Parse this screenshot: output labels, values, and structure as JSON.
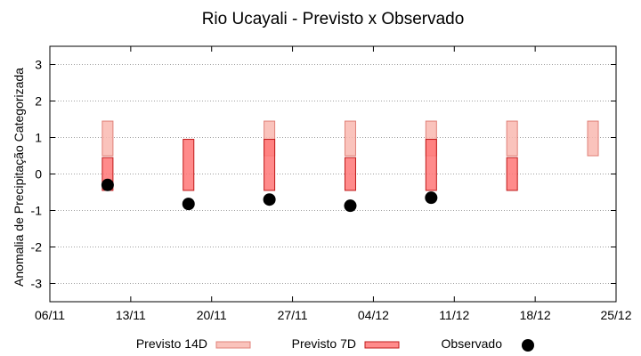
{
  "chart_data": {
    "type": "bar",
    "title": "Rio Ucayali - Previsto x Observado",
    "xlabel": "",
    "ylabel": "Anomalia de Precipitação Categorizada",
    "ylim": [
      -3.5,
      3.5
    ],
    "yticks": [
      "3",
      "2",
      "1",
      "0",
      "-1",
      "-2",
      "-3"
    ],
    "ytick_values": [
      3,
      2,
      1,
      0,
      -1,
      -2,
      -3
    ],
    "x_axis": {
      "start": "2024-11-06",
      "end": "2024-12-25",
      "tick_labels": [
        "06/11",
        "13/11",
        "20/11",
        "27/11",
        "04/12",
        "11/12",
        "18/12",
        "25/12"
      ],
      "tick_dates": [
        "2024-11-06",
        "2024-11-13",
        "2024-11-20",
        "2024-11-27",
        "2024-12-04",
        "2024-12-11",
        "2024-12-18",
        "2024-12-25"
      ]
    },
    "grid": true,
    "legend_placement": "bottom",
    "series": [
      {
        "name": "Previsto 14D",
        "kind": "range",
        "color": "#f9b8b0",
        "edge": "#e08078",
        "points": [
          {
            "date": "2024-11-11",
            "low": 0.5,
            "high": 1.45
          },
          {
            "date": "2024-11-25",
            "low": 0.5,
            "high": 1.45
          },
          {
            "date": "2024-12-02",
            "low": 0.5,
            "high": 1.45
          },
          {
            "date": "2024-12-09",
            "low": 0.5,
            "high": 1.45
          },
          {
            "date": "2024-12-16",
            "low": 0.5,
            "high": 1.45
          },
          {
            "date": "2024-12-23",
            "low": 0.5,
            "high": 1.45
          }
        ]
      },
      {
        "name": "Previsto 7D",
        "kind": "range",
        "color": "#ff7777",
        "edge": "#c01818",
        "points": [
          {
            "date": "2024-11-11",
            "low": -0.45,
            "high": 0.45
          },
          {
            "date": "2024-11-18",
            "low": -0.45,
            "high": 0.95
          },
          {
            "date": "2024-11-25",
            "low": -0.45,
            "high": 0.95
          },
          {
            "date": "2024-12-02",
            "low": -0.45,
            "high": 0.45
          },
          {
            "date": "2024-12-09",
            "low": -0.45,
            "high": 0.95
          },
          {
            "date": "2024-12-16",
            "low": -0.45,
            "high": 0.45
          }
        ]
      },
      {
        "name": "Observado",
        "kind": "scatter",
        "color": "#000000",
        "points": [
          {
            "date": "2024-11-11",
            "value": -0.3
          },
          {
            "date": "2024-11-18",
            "value": -0.82
          },
          {
            "date": "2024-11-25",
            "value": -0.7
          },
          {
            "date": "2024-12-02",
            "value": -0.87
          },
          {
            "date": "2024-12-09",
            "value": -0.65
          }
        ]
      }
    ]
  }
}
